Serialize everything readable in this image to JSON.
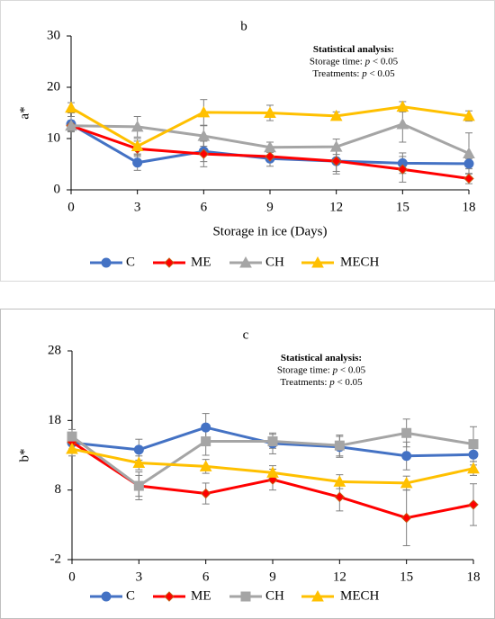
{
  "chart_data": [
    {
      "type": "line",
      "title": "b",
      "y_label": "a*",
      "x_label": "Storage in ice (Days)",
      "annotation": [
        [
          "Statistical analysis:"
        ],
        [
          "Storage time: ",
          "p",
          " < 0.05"
        ],
        [
          "Treatments: ",
          "p",
          " < 0.05"
        ]
      ],
      "x": [
        0,
        3,
        6,
        9,
        12,
        15,
        18
      ],
      "xlim": [
        0,
        18
      ],
      "xticks": [
        0,
        3,
        6,
        9,
        12,
        15,
        18
      ],
      "ylim": [
        0,
        30
      ],
      "yticks": [
        0,
        10,
        20,
        30
      ],
      "grid": false,
      "series": [
        {
          "name": "C",
          "color": "#4472c4",
          "marker": "circle",
          "values": [
            12.8,
            5.3,
            7.5,
            6.1,
            5.6,
            5.2,
            5.1
          ],
          "errors": [
            1.5,
            1.5,
            2,
            1.5,
            2,
            2,
            1
          ]
        },
        {
          "name": "ME",
          "color": "#ff0000",
          "marker": "diamond",
          "values": [
            12.5,
            8.0,
            7.0,
            6.5,
            5.6,
            4.0,
            2.2
          ],
          "errors": [
            1,
            1.5,
            2.5,
            1,
            2.5,
            2.5,
            1
          ]
        },
        {
          "name": "CH",
          "color": "#a5a5a5",
          "marker": "triangle",
          "values": [
            12.5,
            12.3,
            10.5,
            8.3,
            8.4,
            12.8,
            7.1
          ],
          "errors": [
            1,
            2,
            2,
            1,
            1.5,
            3.5,
            4
          ]
        },
        {
          "name": "MECH",
          "color": "#ffc000",
          "marker": "triangle",
          "values": [
            16.0,
            8.5,
            15.1,
            15.0,
            14.4,
            16.2,
            14.4
          ],
          "errors": [
            1,
            1.5,
            2.5,
            1.5,
            0.8,
            1,
            1
          ]
        }
      ]
    },
    {
      "type": "line",
      "title": "c",
      "y_label": "b*",
      "annotation": [
        [
          "Statistical analysis:"
        ],
        [
          "Storage time: ",
          "p",
          " < 0.05"
        ],
        [
          "Treatments: ",
          "p",
          " < 0.05"
        ]
      ],
      "x": [
        0,
        3,
        6,
        9,
        12,
        15,
        18
      ],
      "xlim": [
        0,
        18
      ],
      "xticks": [
        0,
        3,
        6,
        9,
        12,
        15,
        18
      ],
      "ylim": [
        -2,
        28
      ],
      "yticks": [
        -2,
        8,
        18,
        28
      ],
      "grid": false,
      "series": [
        {
          "name": "C",
          "color": "#4472c4",
          "marker": "circle",
          "values": [
            14.8,
            13.8,
            17.0,
            14.7,
            14.2,
            12.9,
            13.1
          ],
          "errors": [
            1,
            1.5,
            2,
            1.5,
            1.5,
            2,
            1.5
          ]
        },
        {
          "name": "ME",
          "color": "#ff0000",
          "marker": "diamond",
          "values": [
            14.9,
            8.6,
            7.5,
            9.5,
            7.0,
            4.0,
            5.9
          ],
          "errors": [
            1,
            2,
            1.5,
            1.5,
            2,
            4,
            3
          ]
        },
        {
          "name": "CH",
          "color": "#a5a5a5",
          "marker": "square",
          "values": [
            15.7,
            8.6,
            15.0,
            15.0,
            14.4,
            16.2,
            14.6
          ],
          "errors": [
            1,
            1.5,
            2,
            1,
            1.5,
            2,
            2.5
          ]
        },
        {
          "name": "MECH",
          "color": "#ffc000",
          "marker": "triangle",
          "values": [
            13.9,
            11.9,
            11.4,
            10.5,
            9.2,
            9.0,
            11.1
          ],
          "errors": [
            1,
            1,
            1,
            1,
            1,
            1,
            1
          ]
        }
      ]
    }
  ]
}
